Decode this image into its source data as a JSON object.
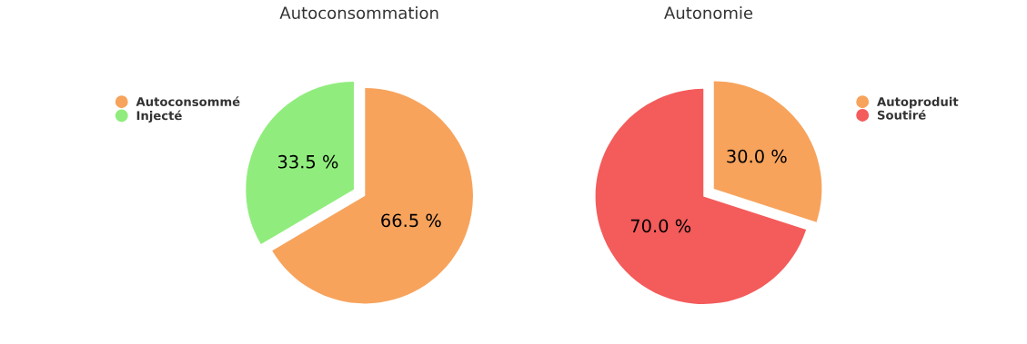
{
  "chart_data": [
    {
      "type": "pie",
      "title": "Autoconsommation",
      "categories": [
        "Autoconsommé",
        "Injecté"
      ],
      "values": [
        66.5,
        33.5
      ],
      "colors": [
        "#f7a35c",
        "#90ed7d"
      ],
      "value_labels": [
        "66.5 %",
        "33.5 %"
      ],
      "legend": "top left"
    },
    {
      "type": "pie",
      "title": "Autonomie",
      "categories": [
        "Autoproduit",
        "Soutiré"
      ],
      "values": [
        30.0,
        70.0
      ],
      "colors": [
        "#f7a35c",
        "#f45b5b"
      ],
      "value_labels": [
        "30.0 %",
        "70.0 %"
      ],
      "legend": "top right"
    }
  ]
}
